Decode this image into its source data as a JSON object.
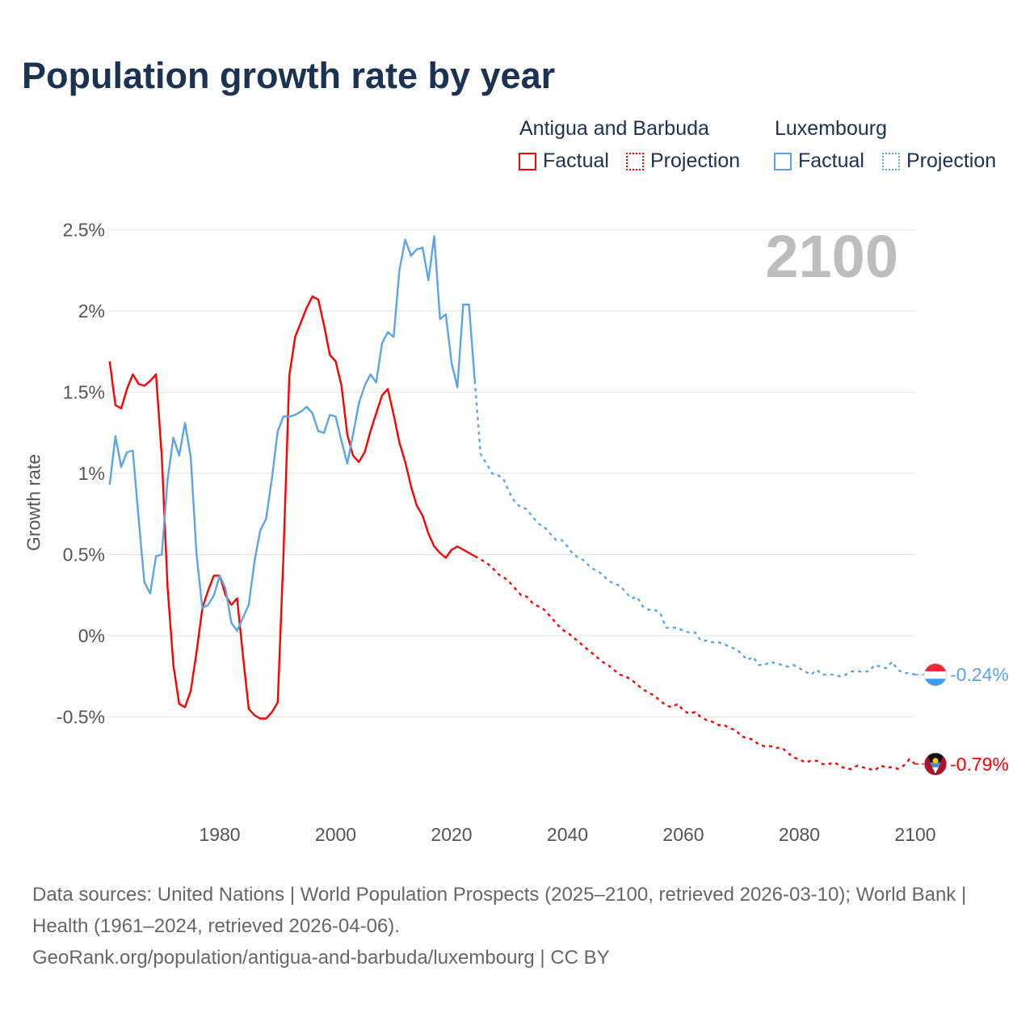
{
  "chart_data": {
    "type": "line",
    "title": "Population growth rate by year",
    "ylabel": "Growth rate",
    "xlabel": "",
    "xlim": [
      1961,
      2100
    ],
    "ylim": [
      -0.5,
      2.5
    ],
    "y_ticks": [
      -0.5,
      0,
      0.5,
      1,
      1.5,
      2,
      2.5
    ],
    "y_tick_labels": [
      "-0.5%",
      "0%",
      "0.5%",
      "1%",
      "1.5%",
      "2%",
      "2.5%"
    ],
    "x_ticks": [
      1980,
      2000,
      2020,
      2040,
      2060,
      2080,
      2100
    ],
    "x_tick_labels": [
      "1980",
      "2000",
      "2020",
      "2040",
      "2060",
      "2080",
      "2100"
    ],
    "grid": true,
    "current_year": "2100",
    "legend": {
      "placement": "top-right",
      "groups": [
        {
          "name": "Antigua and Barbuda",
          "factual": "Factual",
          "projection": "Projection"
        },
        {
          "name": "Luxembourg",
          "factual": "Factual",
          "projection": "Projection"
        }
      ]
    },
    "series": [
      {
        "name": "Antigua and Barbuda",
        "color": "#ff0000",
        "end_label": "-0.79%",
        "factual_start": 1961,
        "factual": [
          1.69,
          1.42,
          1.4,
          1.52,
          1.61,
          1.55,
          1.54,
          1.57,
          1.61,
          1.1,
          0.3,
          -0.18,
          -0.42,
          -0.44,
          -0.34,
          -0.1,
          0.17,
          0.28,
          0.37,
          0.37,
          0.25,
          0.19,
          0.23,
          -0.12,
          -0.45,
          -0.49,
          -0.51,
          -0.51,
          -0.47,
          -0.41,
          0.5,
          1.6,
          1.84,
          1.93,
          2.02,
          2.09,
          2.07,
          1.91,
          1.73,
          1.69,
          1.54,
          1.24,
          1.11,
          1.07,
          1.13,
          1.26,
          1.37,
          1.48,
          1.52,
          1.36,
          1.19,
          1.07,
          0.92,
          0.8,
          0.74,
          0.63,
          0.55,
          0.51,
          0.48,
          0.53,
          0.55,
          0.53,
          0.51,
          0.49
        ],
        "projection_start": 2024,
        "projection": [
          0.49,
          0.47,
          0.45,
          0.42,
          0.38,
          0.36,
          0.33,
          0.29,
          0.25,
          0.24,
          0.2,
          0.18,
          0.16,
          0.12,
          0.08,
          0.04,
          0.02,
          -0.01,
          -0.04,
          -0.07,
          -0.1,
          -0.13,
          -0.16,
          -0.18,
          -0.21,
          -0.24,
          -0.25,
          -0.27,
          -0.3,
          -0.33,
          -0.35,
          -0.37,
          -0.4,
          -0.43,
          -0.44,
          -0.42,
          -0.46,
          -0.48,
          -0.47,
          -0.5,
          -0.52,
          -0.53,
          -0.55,
          -0.55,
          -0.57,
          -0.58,
          -0.62,
          -0.63,
          -0.64,
          -0.67,
          -0.68,
          -0.68,
          -0.69,
          -0.69,
          -0.72,
          -0.75,
          -0.76,
          -0.78,
          -0.77,
          -0.77,
          -0.79,
          -0.79,
          -0.78,
          -0.8,
          -0.82,
          -0.82,
          -0.8,
          -0.81,
          -0.82,
          -0.83,
          -0.8,
          -0.81,
          -0.81,
          -0.82,
          -0.8,
          -0.76,
          -0.79
        ]
      },
      {
        "name": "Luxembourg",
        "color": "#5ca4e8",
        "end_label": "-0.24%",
        "factual_start": 1961,
        "factual": [
          0.93,
          1.23,
          1.04,
          1.13,
          1.14,
          0.72,
          0.33,
          0.26,
          0.49,
          0.5,
          0.96,
          1.22,
          1.11,
          1.31,
          1.1,
          0.5,
          0.17,
          0.19,
          0.25,
          0.37,
          0.29,
          0.08,
          0.03,
          0.11,
          0.19,
          0.46,
          0.65,
          0.72,
          0.97,
          1.26,
          1.35,
          1.35,
          1.36,
          1.38,
          1.41,
          1.37,
          1.26,
          1.25,
          1.36,
          1.35,
          1.2,
          1.06,
          1.24,
          1.43,
          1.54,
          1.61,
          1.56,
          1.8,
          1.87,
          1.84,
          2.25,
          2.44,
          2.34,
          2.38,
          2.39,
          2.19,
          2.46,
          1.95,
          1.98,
          1.68,
          1.53,
          2.04,
          2.04,
          1.57
        ],
        "projection_start": 2024,
        "projection": [
          1.57,
          1.12,
          1.06,
          1.0,
          0.99,
          0.96,
          0.88,
          0.82,
          0.79,
          0.78,
          0.73,
          0.69,
          0.67,
          0.63,
          0.59,
          0.59,
          0.55,
          0.5,
          0.48,
          0.46,
          0.42,
          0.4,
          0.38,
          0.34,
          0.32,
          0.31,
          0.27,
          0.23,
          0.24,
          0.18,
          0.16,
          0.16,
          0.14,
          0.05,
          0.05,
          0.05,
          0.03,
          0.02,
          0.02,
          -0.03,
          -0.03,
          -0.04,
          -0.04,
          -0.05,
          -0.07,
          -0.08,
          -0.11,
          -0.15,
          -0.13,
          -0.18,
          -0.18,
          -0.16,
          -0.17,
          -0.18,
          -0.19,
          -0.18,
          -0.2,
          -0.22,
          -0.24,
          -0.21,
          -0.24,
          -0.24,
          -0.24,
          -0.25,
          -0.24,
          -0.22,
          -0.22,
          -0.22,
          -0.22,
          -0.18,
          -0.19,
          -0.2,
          -0.16,
          -0.21,
          -0.23,
          -0.23,
          -0.24
        ]
      }
    ]
  },
  "footer": {
    "sources": "Data sources: United Nations | World Population Prospects (2025–2100, retrieved 2026-03-10); World Bank | Health (1961–2024, retrieved 2026-04-06).",
    "attribution": "GeoRank.org/population/antigua-and-barbuda/luxembourg | CC BY"
  }
}
